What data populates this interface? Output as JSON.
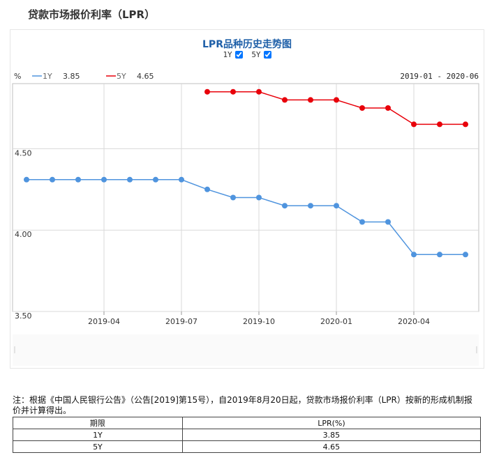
{
  "page": {
    "title": "贷款市场报价利率（LPR）"
  },
  "chart_data": {
    "type": "line",
    "title": "LPR品种历史走势图",
    "toggles": [
      {
        "label": "1Y",
        "checked": true
      },
      {
        "label": "5Y",
        "checked": true
      }
    ],
    "y_unit": "%",
    "date_range": "2019-01 - 2020-06",
    "legend": [
      {
        "name": "1Y",
        "value": "3.85",
        "color": "#4f94de"
      },
      {
        "name": "5Y",
        "value": "4.65",
        "color": "#e8000a"
      }
    ],
    "ylim": [
      3.5,
      4.9
    ],
    "y_ticks": [
      "3.50",
      "4.00",
      "4.50"
    ],
    "x_ticks": [
      "2019-04",
      "2019-07",
      "2019-10",
      "2020-01",
      "2020-04"
    ],
    "x": [
      "2019-01",
      "2019-02",
      "2019-03",
      "2019-04",
      "2019-05",
      "2019-06",
      "2019-07",
      "2019-08",
      "2019-09",
      "2019-10",
      "2019-11",
      "2019-12",
      "2020-01",
      "2020-02",
      "2020-03",
      "2020-04",
      "2020-05",
      "2020-06"
    ],
    "series": [
      {
        "name": "1Y",
        "color": "#4f94de",
        "values": [
          4.31,
          4.31,
          4.31,
          4.31,
          4.31,
          4.31,
          4.31,
          4.25,
          4.2,
          4.2,
          4.15,
          4.15,
          4.15,
          4.05,
          4.05,
          3.85,
          3.85,
          3.85
        ]
      },
      {
        "name": "5Y",
        "color": "#e8000a",
        "values": [
          null,
          null,
          null,
          null,
          null,
          null,
          null,
          4.85,
          4.85,
          4.85,
          4.8,
          4.8,
          4.8,
          4.75,
          4.75,
          4.65,
          4.65,
          4.65
        ]
      }
    ],
    "grid": true,
    "legend_position": "top-left"
  },
  "note": "注：根据《中国人民银行公告》（公告[2019]第15号），自2019年8月20日起，贷款市场报价利率（LPR）按新的形成机制报价并计算得出。",
  "table": {
    "headers": [
      "期限",
      "LPR(%)"
    ],
    "rows": [
      [
        "1Y",
        "3.85"
      ],
      [
        "5Y",
        "4.65"
      ]
    ]
  }
}
